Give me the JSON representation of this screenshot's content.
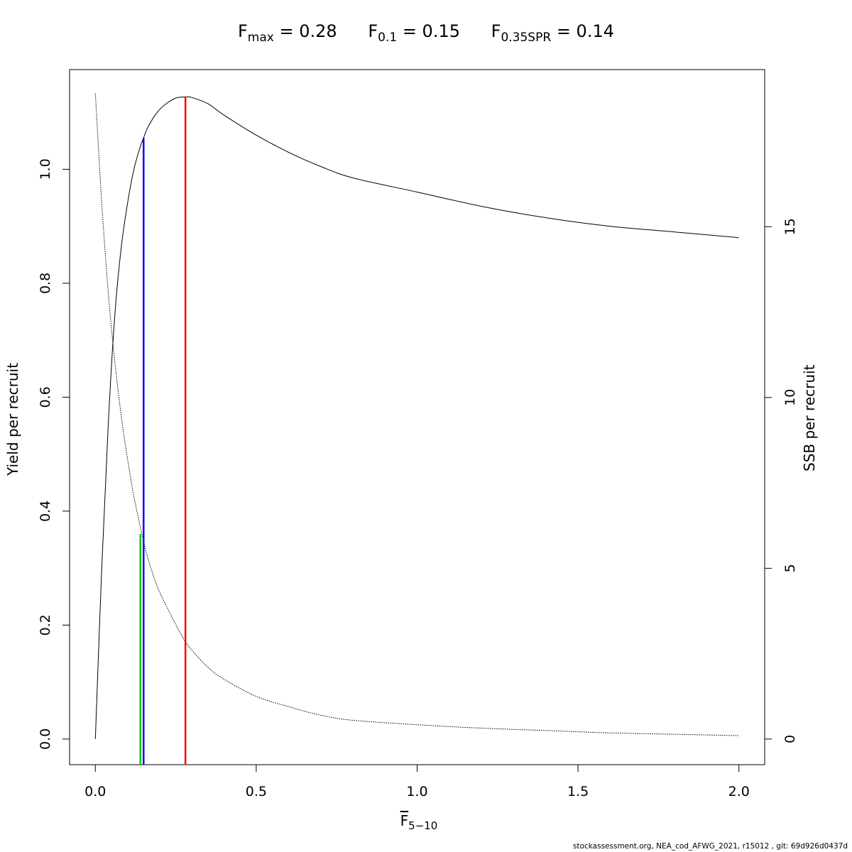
{
  "title": {
    "fmax": {
      "sym": "F",
      "sub": "max",
      "value": "= 0.28"
    },
    "f01": {
      "sym": "F",
      "sub": "0.1",
      "value": "= 0.15"
    },
    "fspr": {
      "sym": "F",
      "sub": "0.35SPR",
      "value": "= 0.14"
    }
  },
  "xlabel": {
    "sym": "F",
    "sub": "5−10"
  },
  "ylabel_left": "Yield per recruit",
  "ylabel_right": "SSB per recruit",
  "footer": "stockassessment.org, NEA_cod_AFWG_2021, r15012 , git: 69d926d0437d",
  "colors": {
    "ypr": "#000000",
    "spr": "#000000",
    "fmax": "#ff0000",
    "f01": "#0000ff",
    "fspr": "#00cc00"
  },
  "chart_data": {
    "type": "line",
    "x_range": [
      0,
      2
    ],
    "xlim": [
      -0.08,
      2.08
    ],
    "x_ticks": [
      0.0,
      0.5,
      1.0,
      1.5,
      2.0
    ],
    "x_tick_labels": [
      "0.0",
      "0.5",
      "1.0",
      "1.5",
      "2.0"
    ],
    "y_left": {
      "ylim": [
        -0.045,
        1.175
      ],
      "ticks": [
        0.0,
        0.2,
        0.4,
        0.6,
        0.8,
        1.0
      ],
      "labels": [
        "0.0",
        "0.2",
        "0.4",
        "0.6",
        "0.8",
        "1.0"
      ]
    },
    "y_right": {
      "ylim": [
        -0.75,
        19.6
      ],
      "ticks": [
        0,
        5,
        10,
        15
      ],
      "labels": [
        "0",
        "5",
        "10",
        "15"
      ]
    },
    "grid": false,
    "series": [
      {
        "axis": "left",
        "style": "solid",
        "x": [
          0,
          0.02,
          0.04,
          0.06,
          0.08,
          0.1,
          0.12,
          0.14,
          0.15,
          0.16,
          0.18,
          0.2,
          0.22,
          0.25,
          0.28,
          0.3,
          0.35,
          0.4,
          0.5,
          0.6,
          0.7,
          0.8,
          1.0,
          1.2,
          1.4,
          1.6,
          1.8,
          2.0
        ],
        "y": [
          0,
          0.3,
          0.55,
          0.74,
          0.86,
          0.94,
          1.0,
          1.04,
          1.055,
          1.07,
          1.09,
          1.105,
          1.115,
          1.125,
          1.127,
          1.126,
          1.115,
          1.095,
          1.06,
          1.03,
          1.005,
          0.985,
          0.96,
          0.935,
          0.915,
          0.9,
          0.89,
          0.88
        ]
      },
      {
        "axis": "right",
        "style": "dotted",
        "x": [
          0,
          0.02,
          0.04,
          0.06,
          0.08,
          0.1,
          0.12,
          0.14,
          0.15,
          0.16,
          0.18,
          0.2,
          0.25,
          0.28,
          0.3,
          0.35,
          0.4,
          0.5,
          0.6,
          0.7,
          0.8,
          1.0,
          1.2,
          1.4,
          1.6,
          1.8,
          2.0
        ],
        "y": [
          18.9,
          15.7,
          13.1,
          11.1,
          9.5,
          8.2,
          7.1,
          6.2,
          5.8,
          5.4,
          4.8,
          4.3,
          3.35,
          2.85,
          2.6,
          2.1,
          1.75,
          1.25,
          0.95,
          0.7,
          0.55,
          0.42,
          0.32,
          0.25,
          0.18,
          0.14,
          0.1
        ]
      }
    ],
    "reference_lines": [
      {
        "name": "Fmax",
        "x": 0.28,
        "y_top": 1.127,
        "axis": "left",
        "color": "#ff0000"
      },
      {
        "name": "F0.1",
        "x": 0.15,
        "y_top": 1.055,
        "axis": "left",
        "color": "#0000ff"
      },
      {
        "name": "F0.35SPR",
        "x": 0.14,
        "y_top": 0.36,
        "axis": "left",
        "color": "#00cc00"
      }
    ]
  }
}
